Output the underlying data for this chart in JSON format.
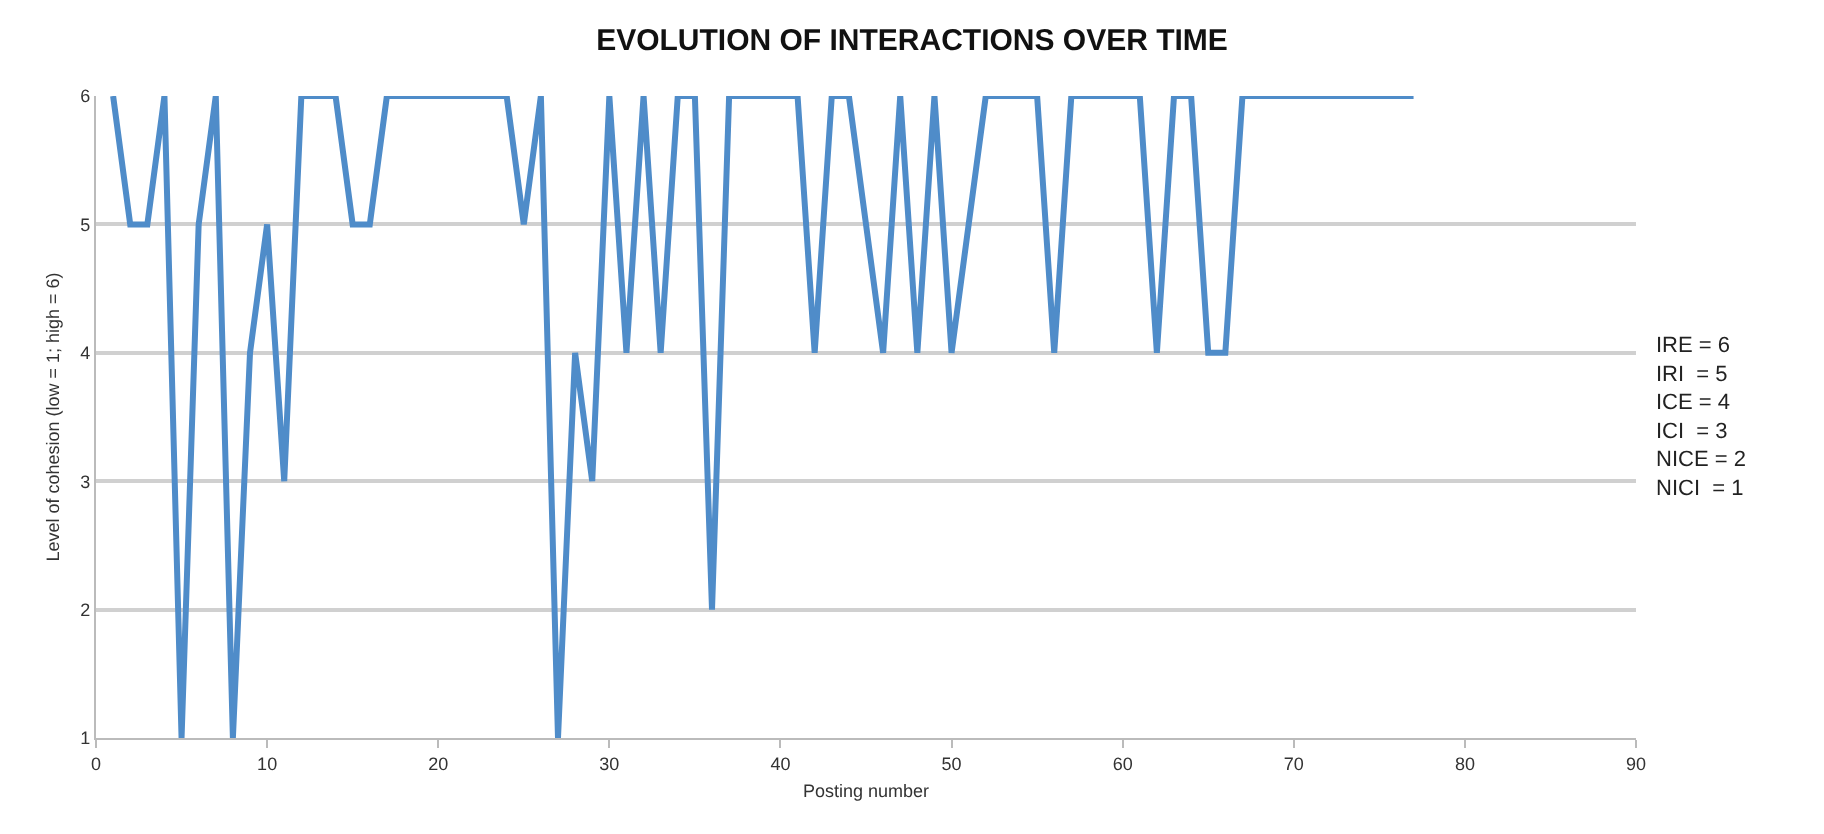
{
  "chart_data": {
    "type": "line",
    "title": "EVOLUTION OF INTERACTIONS OVER TIME",
    "xlabel": "Posting number",
    "ylabel": "Level of cohesion (low = 1; high = 6)",
    "x": [
      1,
      2,
      3,
      4,
      5,
      6,
      7,
      8,
      9,
      10,
      11,
      12,
      13,
      14,
      15,
      16,
      17,
      18,
      19,
      20,
      21,
      22,
      23,
      24,
      25,
      26,
      27,
      28,
      29,
      30,
      31,
      32,
      33,
      34,
      35,
      36,
      37,
      38,
      39,
      40,
      41,
      42,
      43,
      44,
      45,
      46,
      47,
      48,
      49,
      50,
      51,
      52,
      53,
      54,
      55,
      56,
      57,
      58,
      59,
      60,
      61,
      62,
      63,
      64,
      65,
      66,
      67,
      68,
      69,
      70,
      71,
      72,
      73,
      74,
      75,
      76,
      77
    ],
    "series": [
      {
        "color": "#4f8cc9",
        "values": [
          6,
          5,
          5,
          6,
          1,
          5,
          6,
          1,
          4,
          5,
          3,
          6,
          6,
          6,
          5,
          5,
          6,
          6,
          6,
          6,
          6,
          6,
          6,
          6,
          5,
          6,
          1,
          4,
          3,
          6,
          4,
          6,
          4,
          6,
          6,
          2,
          6,
          6,
          6,
          6,
          6,
          4,
          6,
          6,
          5,
          4,
          6,
          4,
          6,
          4,
          5,
          6,
          6,
          6,
          6,
          4,
          6,
          6,
          6,
          6,
          6,
          4,
          6,
          6,
          4,
          4,
          6,
          6,
          6,
          6,
          6,
          6,
          6,
          6,
          6,
          6,
          6
        ]
      }
    ],
    "xlim": [
      0,
      90
    ],
    "xticks": [
      0,
      10,
      20,
      30,
      40,
      50,
      60,
      70,
      80,
      90
    ],
    "ylim": [
      1,
      6
    ],
    "yticks": [
      1,
      2,
      3,
      4,
      5,
      6
    ],
    "grid": "y",
    "marker": "none",
    "line_style": "solid",
    "annotations": [
      "IRE = 6\nIRI  = 5\nICE = 4\nICI  = 3\nNICE = 2\nNICI  = 1"
    ]
  }
}
